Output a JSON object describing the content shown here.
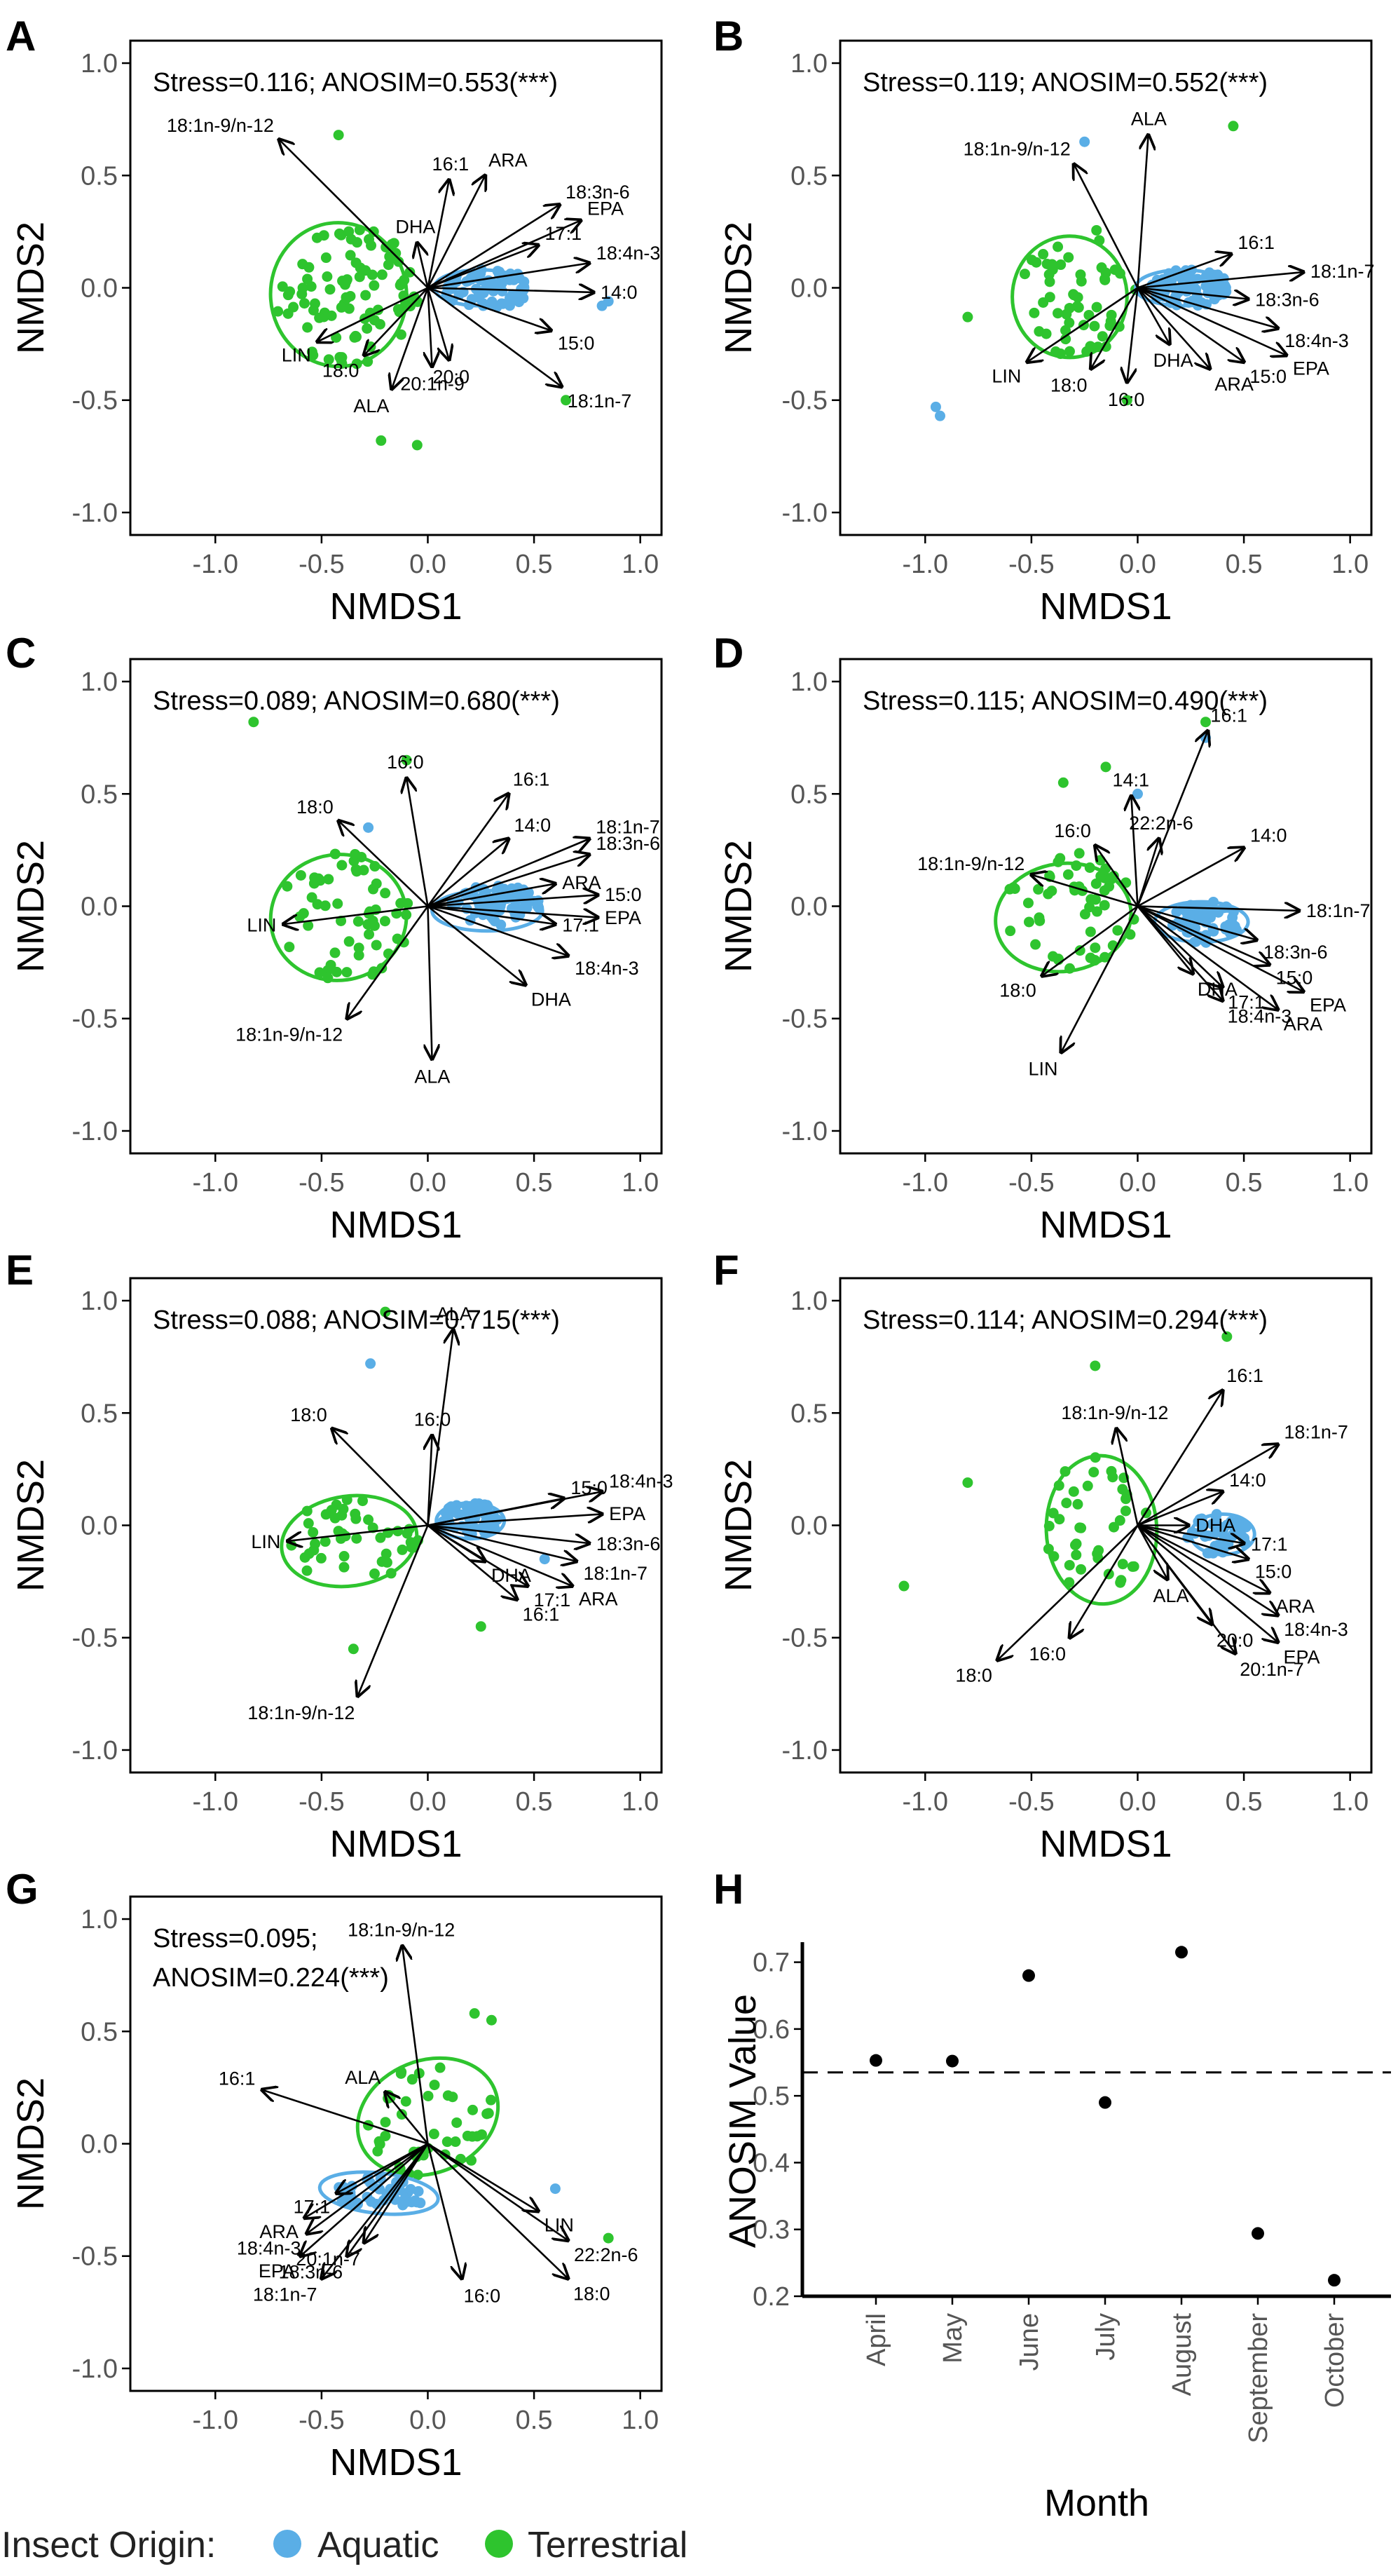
{
  "colors": {
    "aquatic": "#5aaee6",
    "terrestrial": "#2ec42e",
    "axis": "#000000",
    "tick_text": "#555555"
  },
  "legend": {
    "title": "Insect Origin:",
    "items": [
      "Aquatic",
      "Terrestrial"
    ]
  },
  "chart_data": [
    {
      "panel": "A",
      "type": "scatter",
      "xlabel": "NMDS1",
      "ylabel": "NMDS2",
      "xlim": [
        -1.4,
        1.1
      ],
      "ylim": [
        -1.1,
        1.1
      ],
      "xticks": [
        "-1.0",
        "-0.5",
        "0.0",
        "0.5",
        "1.0"
      ],
      "yticks": [
        "1.0",
        "0.5",
        "0.0",
        "-0.5",
        "-1.0"
      ],
      "stats": "Stress=0.116; ANOSIM=0.553(***)",
      "vectors": [
        {
          "label": "18:1n-9/n-12",
          "x": -0.7,
          "y": 0.66
        },
        {
          "label": "16:1",
          "x": 0.1,
          "y": 0.48
        },
        {
          "label": "ARA",
          "x": 0.27,
          "y": 0.5
        },
        {
          "label": "18:3n-6",
          "x": 0.62,
          "y": 0.37
        },
        {
          "label": "17:1",
          "x": 0.52,
          "y": 0.19
        },
        {
          "label": "EPA",
          "x": 0.72,
          "y": 0.3
        },
        {
          "label": "18:4n-3",
          "x": 0.76,
          "y": 0.11
        },
        {
          "label": "14:0",
          "x": 0.78,
          "y": -0.02
        },
        {
          "label": "15:0",
          "x": 0.58,
          "y": -0.19
        },
        {
          "label": "18:1n-7",
          "x": 0.63,
          "y": -0.44
        },
        {
          "label": "DHA",
          "x": -0.05,
          "y": 0.2
        },
        {
          "label": "LIN",
          "x": -0.52,
          "y": -0.24
        },
        {
          "label": "18:0",
          "x": -0.3,
          "y": -0.3
        },
        {
          "label": "20:0",
          "x": 0.1,
          "y": -0.32
        },
        {
          "label": "20:1n-9",
          "x": 0.02,
          "y": -0.35
        },
        {
          "label": "ALA",
          "x": -0.17,
          "y": -0.45
        }
      ]
    },
    {
      "panel": "B",
      "type": "scatter",
      "xlabel": "NMDS1",
      "ylabel": "NMDS2",
      "xlim": [
        -1.4,
        1.1
      ],
      "ylim": [
        -1.1,
        1.1
      ],
      "xticks": [
        "-1.0",
        "-0.5",
        "0.0",
        "0.5",
        "1.0"
      ],
      "yticks": [
        "1.0",
        "0.5",
        "0.0",
        "-0.5",
        "-1.0"
      ],
      "stats": "Stress=0.119; ANOSIM=0.552(***)",
      "vectors": [
        {
          "label": "ALA",
          "x": 0.05,
          "y": 0.68
        },
        {
          "label": "18:1n-9/n-12",
          "x": -0.3,
          "y": 0.55
        },
        {
          "label": "16:1",
          "x": 0.44,
          "y": 0.15
        },
        {
          "label": "18:1n-7",
          "x": 0.78,
          "y": 0.07
        },
        {
          "label": "18:3n-6",
          "x": 0.52,
          "y": -0.05
        },
        {
          "label": "18:4n-3",
          "x": 0.66,
          "y": -0.18
        },
        {
          "label": "EPA",
          "x": 0.7,
          "y": -0.3
        },
        {
          "label": "15:0",
          "x": 0.5,
          "y": -0.33
        },
        {
          "label": "ARA",
          "x": 0.34,
          "y": -0.36
        },
        {
          "label": "DHA",
          "x": 0.15,
          "y": -0.25
        },
        {
          "label": "16:0",
          "x": -0.05,
          "y": -0.42
        },
        {
          "label": "18:0",
          "x": -0.22,
          "y": -0.36
        },
        {
          "label": "LIN",
          "x": -0.52,
          "y": -0.33
        }
      ]
    },
    {
      "panel": "C",
      "type": "scatter",
      "xlabel": "NMDS1",
      "ylabel": "NMDS2",
      "xlim": [
        -1.4,
        1.1
      ],
      "ylim": [
        -1.1,
        1.1
      ],
      "xticks": [
        "-1.0",
        "-0.5",
        "0.0",
        "0.5",
        "1.0"
      ],
      "yticks": [
        "1.0",
        "0.5",
        "0.0",
        "-0.5",
        "-1.0"
      ],
      "stats": "Stress=0.089; ANOSIM=0.680(***)",
      "vectors": [
        {
          "label": "16:0",
          "x": -0.1,
          "y": 0.57
        },
        {
          "label": "18:0",
          "x": -0.42,
          "y": 0.38
        },
        {
          "label": "16:1",
          "x": 0.38,
          "y": 0.5
        },
        {
          "label": "14:0",
          "x": 0.38,
          "y": 0.3
        },
        {
          "label": "18:1n-7",
          "x": 0.76,
          "y": 0.3
        },
        {
          "label": "18:3n-6",
          "x": 0.76,
          "y": 0.23
        },
        {
          "label": "ARA",
          "x": 0.6,
          "y": 0.1
        },
        {
          "label": "15:0",
          "x": 0.8,
          "y": 0.05
        },
        {
          "label": "EPA",
          "x": 0.8,
          "y": -0.05
        },
        {
          "label": "17:1",
          "x": 0.6,
          "y": -0.08
        },
        {
          "label": "18:4n-3",
          "x": 0.66,
          "y": -0.22
        },
        {
          "label": "DHA",
          "x": 0.46,
          "y": -0.35
        },
        {
          "label": "LIN",
          "x": -0.68,
          "y": -0.08
        },
        {
          "label": "18:1n-9/n-12",
          "x": -0.38,
          "y": -0.5
        },
        {
          "label": "ALA",
          "x": 0.02,
          "y": -0.68
        }
      ]
    },
    {
      "panel": "D",
      "type": "scatter",
      "xlabel": "NMDS1",
      "ylabel": "NMDS2",
      "xlim": [
        -1.4,
        1.1
      ],
      "ylim": [
        -1.1,
        1.1
      ],
      "xticks": [
        "-1.0",
        "-0.5",
        "0.0",
        "0.5",
        "1.0"
      ],
      "yticks": [
        "1.0",
        "0.5",
        "0.0",
        "-0.5",
        "-1.0"
      ],
      "stats": "Stress=0.115; ANOSIM=0.490(***)",
      "vectors": [
        {
          "label": "16:1",
          "x": 0.33,
          "y": 0.78
        },
        {
          "label": "14:1",
          "x": -0.03,
          "y": 0.49
        },
        {
          "label": "22:2n-6",
          "x": 0.1,
          "y": 0.3
        },
        {
          "label": "14:0",
          "x": 0.5,
          "y": 0.26
        },
        {
          "label": "16:0",
          "x": -0.2,
          "y": 0.27
        },
        {
          "label": "18:1n-9/n-12",
          "x": -0.5,
          "y": 0.14
        },
        {
          "label": "18:1n-7",
          "x": 0.76,
          "y": -0.02
        },
        {
          "label": "18:3n-6",
          "x": 0.56,
          "y": -0.15
        },
        {
          "label": "15:0",
          "x": 0.62,
          "y": -0.26
        },
        {
          "label": "EPA",
          "x": 0.78,
          "y": -0.38
        },
        {
          "label": "ARA",
          "x": 0.66,
          "y": -0.46
        },
        {
          "label": "17:1",
          "x": 0.4,
          "y": -0.36
        },
        {
          "label": "18:4n-3",
          "x": 0.4,
          "y": -0.42
        },
        {
          "label": "DHA",
          "x": 0.26,
          "y": -0.3
        },
        {
          "label": "18:0",
          "x": -0.45,
          "y": -0.31
        },
        {
          "label": "LIN",
          "x": -0.36,
          "y": -0.65
        }
      ]
    },
    {
      "panel": "E",
      "type": "scatter",
      "xlabel": "NMDS1",
      "ylabel": "NMDS2",
      "xlim": [
        -1.4,
        1.1
      ],
      "ylim": [
        -1.1,
        1.1
      ],
      "xticks": [
        "-1.0",
        "-0.5",
        "0.0",
        "0.5",
        "1.0"
      ],
      "yticks": [
        "1.0",
        "0.5",
        "0.0",
        "-0.5",
        "-1.0"
      ],
      "stats": "Stress=0.088; ANOSIM=0.715(***)",
      "vectors": [
        {
          "label": "ALA",
          "x": 0.12,
          "y": 0.87
        },
        {
          "label": "16:0",
          "x": 0.02,
          "y": 0.4
        },
        {
          "label": "18:0",
          "x": -0.45,
          "y": 0.43
        },
        {
          "label": "15:0",
          "x": 0.64,
          "y": 0.12
        },
        {
          "label": "18:4n-3",
          "x": 0.82,
          "y": 0.15
        },
        {
          "label": "EPA",
          "x": 0.82,
          "y": 0.05
        },
        {
          "label": "18:3n-6",
          "x": 0.76,
          "y": -0.08
        },
        {
          "label": "18:1n-7",
          "x": 0.7,
          "y": -0.16
        },
        {
          "label": "ARA",
          "x": 0.68,
          "y": -0.27
        },
        {
          "label": "17:1",
          "x": 0.47,
          "y": -0.27
        },
        {
          "label": "16:1",
          "x": 0.42,
          "y": -0.33
        },
        {
          "label": "DHA",
          "x": 0.27,
          "y": -0.16
        },
        {
          "label": "LIN",
          "x": -0.66,
          "y": -0.07
        },
        {
          "label": "18:1n-9/n-12",
          "x": -0.33,
          "y": -0.76
        }
      ]
    },
    {
      "panel": "F",
      "type": "scatter",
      "xlabel": "NMDS1",
      "ylabel": "NMDS2",
      "xlim": [
        -1.4,
        1.1
      ],
      "ylim": [
        -1.1,
        1.1
      ],
      "xticks": [
        "-1.0",
        "-0.5",
        "0.0",
        "0.5",
        "1.0"
      ],
      "yticks": [
        "1.0",
        "0.5",
        "0.0",
        "-0.5",
        "-1.0"
      ],
      "stats": "Stress=0.114; ANOSIM=0.294(***)",
      "vectors": [
        {
          "label": "18:1n-9/n-12",
          "x": -0.1,
          "y": 0.43
        },
        {
          "label": "16:1",
          "x": 0.4,
          "y": 0.6
        },
        {
          "label": "18:1n-7",
          "x": 0.66,
          "y": 0.36
        },
        {
          "label": "14:0",
          "x": 0.4,
          "y": 0.15
        },
        {
          "label": "DHA",
          "x": 0.24,
          "y": 0.0
        },
        {
          "label": "17:1",
          "x": 0.5,
          "y": -0.08
        },
        {
          "label": "15:0",
          "x": 0.52,
          "y": -0.15
        },
        {
          "label": "ARA",
          "x": 0.62,
          "y": -0.3
        },
        {
          "label": "18:4n-3",
          "x": 0.66,
          "y": -0.4
        },
        {
          "label": "EPA",
          "x": 0.66,
          "y": -0.52
        },
        {
          "label": "20:1n-7",
          "x": 0.46,
          "y": -0.57
        },
        {
          "label": "20:0",
          "x": 0.35,
          "y": -0.44
        },
        {
          "label": "ALA",
          "x": 0.14,
          "y": -0.24
        },
        {
          "label": "16:0",
          "x": -0.32,
          "y": -0.5
        },
        {
          "label": "18:0",
          "x": -0.66,
          "y": -0.6
        }
      ]
    },
    {
      "panel": "G",
      "type": "scatter",
      "xlabel": "NMDS1",
      "ylabel": "NMDS2",
      "xlim": [
        -1.4,
        1.1
      ],
      "ylim": [
        -1.1,
        1.1
      ],
      "xticks": [
        "-1.0",
        "-0.5",
        "0.0",
        "0.5",
        "1.0"
      ],
      "yticks": [
        "1.0",
        "0.5",
        "0.0",
        "-0.5",
        "-1.0"
      ],
      "stats_lines": [
        "Stress=0.095;",
        "ANOSIM=0.224(***)"
      ],
      "vectors": [
        {
          "label": "18:1n-9/n-12",
          "x": -0.12,
          "y": 0.88
        },
        {
          "label": "ALA",
          "x": -0.2,
          "y": 0.23
        },
        {
          "label": "16:1",
          "x": -0.78,
          "y": 0.24
        },
        {
          "label": "LIN",
          "x": 0.52,
          "y": -0.3
        },
        {
          "label": "22:2n-6",
          "x": 0.66,
          "y": -0.43
        },
        {
          "label": "18:0",
          "x": 0.66,
          "y": -0.6
        },
        {
          "label": "16:0",
          "x": 0.16,
          "y": -0.6
        },
        {
          "label": "17:1",
          "x": -0.43,
          "y": -0.22
        },
        {
          "label": "ARA",
          "x": -0.58,
          "y": -0.33
        },
        {
          "label": "18:4n-3",
          "x": -0.57,
          "y": -0.4
        },
        {
          "label": "EPA",
          "x": -0.6,
          "y": -0.5
        },
        {
          "label": "20:1n-7",
          "x": -0.3,
          "y": -0.44
        },
        {
          "label": "18:3n-6",
          "x": -0.38,
          "y": -0.5
        },
        {
          "label": "18:1n-7",
          "x": -0.5,
          "y": -0.6
        }
      ]
    },
    {
      "panel": "H",
      "type": "scatter",
      "xlabel": "Month",
      "ylabel": "ANOSIM Value",
      "categories": [
        "April",
        "May",
        "June",
        "July",
        "August",
        "September",
        "October"
      ],
      "values": [
        0.553,
        0.552,
        0.68,
        0.49,
        0.715,
        0.294,
        0.224
      ],
      "ylim": [
        0.2,
        0.73
      ],
      "yticks": [
        "0.7",
        "0.6",
        "0.5",
        "0.4",
        "0.3",
        "0.2"
      ],
      "reference_line": 0.535
    }
  ]
}
